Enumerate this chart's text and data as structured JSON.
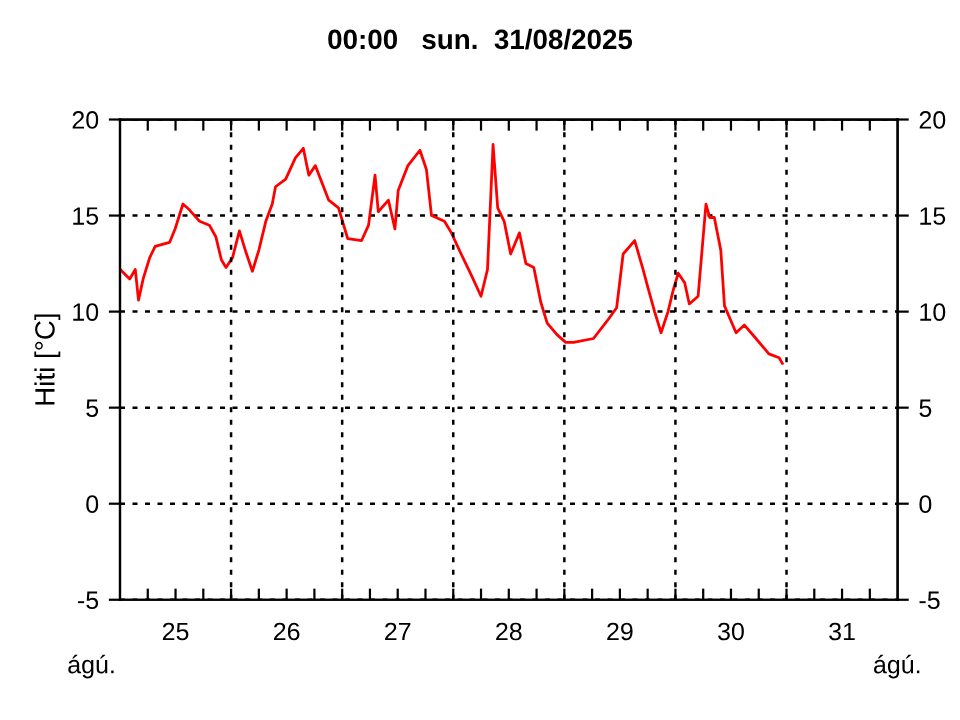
{
  "chart_data": {
    "type": "line",
    "title": "00:00   sun.  31/08/2025",
    "ylabel": "Hiti [°C]",
    "annotations": [
      "ágú.",
      "ágú."
    ],
    "x": [
      "2025-08-25T00:00",
      "2025-08-25T02:06",
      "2025-08-25T03:18",
      "2025-08-25T04:00",
      "2025-08-25T05:00",
      "2025-08-25T06:24",
      "2025-08-25T07:36",
      "2025-08-25T10:42",
      "2025-08-25T11:54",
      "2025-08-25T13:36",
      "2025-08-25T15:00",
      "2025-08-25T17:12",
      "2025-08-25T19:18",
      "2025-08-25T20:42",
      "2025-08-25T21:54",
      "2025-08-25T22:54",
      "2025-08-26T00:18",
      "2025-08-26T01:48",
      "2025-08-26T03:12",
      "2025-08-26T04:36",
      "2025-08-26T06:00",
      "2025-08-26T07:30",
      "2025-08-26T08:54",
      "2025-08-26T09:36",
      "2025-08-26T11:48",
      "2025-08-26T13:54",
      "2025-08-26T15:36",
      "2025-08-26T16:48",
      "2025-08-26T18:12",
      "2025-08-26T21:06",
      "2025-08-26T23:12",
      "2025-08-27T01:12",
      "2025-08-27T04:12",
      "2025-08-27T05:42",
      "2025-08-27T07:06",
      "2025-08-27T07:48",
      "2025-08-27T10:00",
      "2025-08-27T11:24",
      "2025-08-27T12:06",
      "2025-08-27T14:12",
      "2025-08-27T16:48",
      "2025-08-27T18:12",
      "2025-08-27T19:18",
      "2025-08-27T22:06",
      "2025-08-27T23:36",
      "2025-08-28T01:42",
      "2025-08-28T03:54",
      "2025-08-28T06:00",
      "2025-08-28T07:24",
      "2025-08-28T08:36",
      "2025-08-28T09:36",
      "2025-08-28T11:00",
      "2025-08-28T12:24",
      "2025-08-28T14:18",
      "2025-08-28T15:42",
      "2025-08-28T17:24",
      "2025-08-28T18:54",
      "2025-08-28T20:18",
      "2025-08-28T22:24",
      "2025-08-29T00:18",
      "2025-08-29T02:00",
      "2025-08-29T06:18",
      "2025-08-29T09:12",
      "2025-08-29T11:18",
      "2025-08-29T12:42",
      "2025-08-29T15:12",
      "2025-08-29T17:00",
      "2025-08-29T18:00",
      "2025-08-29T19:30",
      "2025-08-29T20:54",
      "2025-08-29T22:24",
      "2025-08-29T23:30",
      "2025-08-30T00:36",
      "2025-08-30T02:00",
      "2025-08-30T03:00",
      "2025-08-30T04:54",
      "2025-08-30T06:36",
      "2025-08-30T07:24",
      "2025-08-30T08:24",
      "2025-08-30T09:48",
      "2025-08-30T10:36",
      "2025-08-30T13:06",
      "2025-08-30T14:54",
      "2025-08-30T17:24",
      "2025-08-30T20:12",
      "2025-08-30T22:24",
      "2025-08-30T23:06"
    ],
    "series": [
      {
        "color": "#ff0000",
        "values": [
          12.2,
          11.7,
          12.2,
          10.6,
          11.7,
          12.8,
          13.4,
          13.6,
          14.3,
          15.6,
          15.3,
          14.7,
          14.5,
          13.9,
          12.7,
          12.3,
          12.8,
          14.2,
          13.1,
          12.1,
          13.2,
          14.7,
          15.6,
          16.5,
          16.9,
          18.0,
          18.5,
          17.1,
          17.6,
          15.8,
          15.4,
          13.8,
          13.7,
          14.5,
          17.1,
          15.2,
          15.8,
          14.3,
          16.3,
          17.6,
          18.4,
          17.4,
          15.0,
          14.7,
          14.1,
          13.0,
          11.9,
          10.8,
          12.2,
          18.7,
          15.4,
          14.7,
          13.0,
          14.1,
          12.5,
          12.3,
          10.5,
          9.4,
          8.8,
          8.4,
          8.4,
          8.6,
          9.5,
          10.2,
          13.0,
          13.7,
          12.2,
          11.3,
          10.0,
          8.9,
          10.0,
          11.1,
          12.0,
          11.5,
          10.4,
          10.8,
          15.6,
          14.9,
          14.9,
          13.2,
          10.3,
          8.9,
          9.3,
          8.6,
          7.8,
          7.6,
          7.3
        ]
      }
    ],
    "xlim": [
      "2025-08-25T00:00",
      "2025-09-01T00:00"
    ],
    "xticks": [
      {
        "value": "2025-08-25T06:00",
        "label": null
      },
      {
        "value": "2025-08-25T12:00",
        "label": "25"
      },
      {
        "value": "2025-08-25T18:00",
        "label": null
      },
      {
        "value": "2025-08-26T00:00",
        "label": null
      },
      {
        "value": "2025-08-26T06:00",
        "label": null
      },
      {
        "value": "2025-08-26T12:00",
        "label": "26"
      },
      {
        "value": "2025-08-26T18:00",
        "label": null
      },
      {
        "value": "2025-08-27T00:00",
        "label": null
      },
      {
        "value": "2025-08-27T06:00",
        "label": null
      },
      {
        "value": "2025-08-27T12:00",
        "label": "27"
      },
      {
        "value": "2025-08-27T18:00",
        "label": null
      },
      {
        "value": "2025-08-28T00:00",
        "label": null
      },
      {
        "value": "2025-08-28T06:00",
        "label": null
      },
      {
        "value": "2025-08-28T12:00",
        "label": "28"
      },
      {
        "value": "2025-08-28T18:00",
        "label": null
      },
      {
        "value": "2025-08-29T00:00",
        "label": null
      },
      {
        "value": "2025-08-29T06:00",
        "label": null
      },
      {
        "value": "2025-08-29T12:00",
        "label": "29"
      },
      {
        "value": "2025-08-29T18:00",
        "label": null
      },
      {
        "value": "2025-08-30T00:00",
        "label": null
      },
      {
        "value": "2025-08-30T06:00",
        "label": null
      },
      {
        "value": "2025-08-30T12:00",
        "label": "30"
      },
      {
        "value": "2025-08-30T18:00",
        "label": null
      },
      {
        "value": "2025-08-31T00:00",
        "label": null
      },
      {
        "value": "2025-08-31T06:00",
        "label": null
      },
      {
        "value": "2025-08-31T12:00",
        "label": "31"
      },
      {
        "value": "2025-08-31T18:00",
        "label": null
      }
    ],
    "ylim": [
      -5,
      20
    ],
    "yticks": [
      -5,
      0,
      5,
      10,
      15,
      20
    ],
    "y2lim": [
      -5,
      20
    ],
    "y2ticks": [
      -5,
      0,
      5,
      10,
      15,
      20
    ],
    "grid": "y",
    "ref_lines": [
      {
        "axis": "x",
        "value": "2025-08-26T00:00",
        "color": "#000000",
        "line_style": "dotted"
      },
      {
        "axis": "x",
        "value": "2025-08-27T00:00",
        "color": "#000000",
        "line_style": "dotted"
      },
      {
        "axis": "x",
        "value": "2025-08-28T00:00",
        "color": "#000000",
        "line_style": "dotted"
      },
      {
        "axis": "x",
        "value": "2025-08-29T00:00",
        "color": "#000000",
        "line_style": "dotted"
      },
      {
        "axis": "x",
        "value": "2025-08-30T00:00",
        "color": "#000000",
        "line_style": "dotted"
      },
      {
        "axis": "x",
        "value": "2025-08-31T00:00",
        "color": "#000000",
        "line_style": "dotted"
      }
    ],
    "line_style": "solid",
    "marker": "none"
  }
}
